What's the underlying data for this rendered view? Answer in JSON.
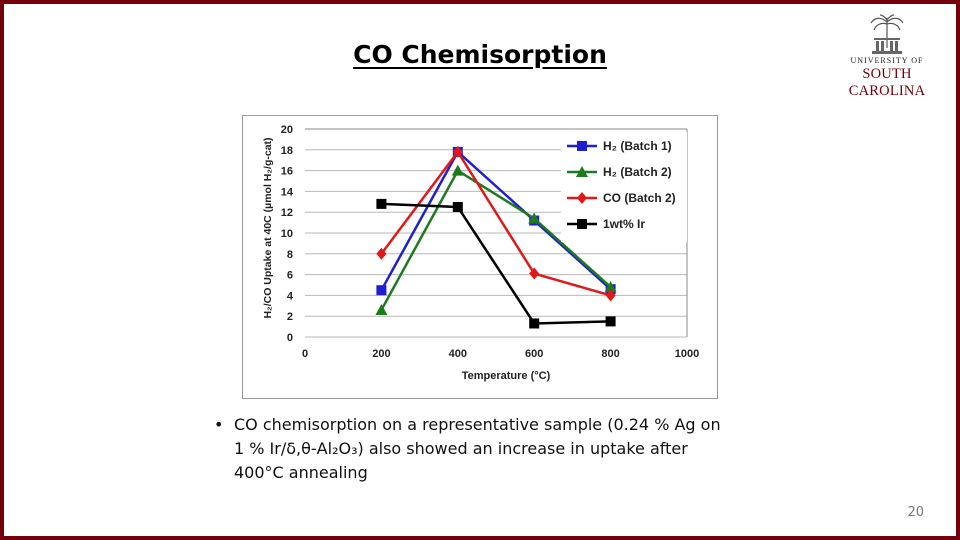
{
  "slide": {
    "title": "CO Chemisorption",
    "bullet_marker": "•",
    "bullet_text": "CO chemisorption on a representative sample (0.24 % Ag on 1 % Ir/δ,θ-Al₂O₃) also showed an increase in uptake after 400°C annealing",
    "page_number": "20",
    "border_color": "#73000a"
  },
  "logo": {
    "line1": "UNIVERSITY OF",
    "line2": "SOUTH CAROLINA",
    "icon": "palmetto-tree-icon"
  },
  "chart_data": {
    "type": "line",
    "title": "",
    "xlabel": "Temperature (°C)",
    "ylabel": "H₂/CO Uptake at 40C (µmol H₂/g-cat)",
    "xlim": [
      0,
      1000
    ],
    "ylim": [
      0,
      20
    ],
    "xticks": [
      0,
      200,
      400,
      600,
      800,
      1000
    ],
    "yticks": [
      0,
      2,
      4,
      6,
      8,
      10,
      12,
      14,
      16,
      18,
      20
    ],
    "grid": "horizontal",
    "legend_position": "top-right",
    "series": [
      {
        "name": "H₂ (Batch 1)",
        "color": "#1f1fd0",
        "marker": "square",
        "x": [
          200,
          400,
          600,
          800
        ],
        "y": [
          4.5,
          17.8,
          11.2,
          4.6
        ]
      },
      {
        "name": "H₂ (Batch 2)",
        "color": "#1e7a1e",
        "marker": "triangle",
        "x": [
          200,
          400,
          600,
          800
        ],
        "y": [
          2.6,
          16.0,
          11.4,
          4.8
        ]
      },
      {
        "name": "CO (Batch 2)",
        "color": "#e01818",
        "marker": "diamond",
        "x": [
          200,
          400,
          600,
          800
        ],
        "y": [
          8.0,
          17.8,
          6.1,
          4.0
        ]
      },
      {
        "name": "1wt% Ir",
        "color": "#000000",
        "marker": "square",
        "x": [
          200,
          400,
          600,
          800
        ],
        "y": [
          12.8,
          12.5,
          1.3,
          1.5
        ]
      }
    ]
  }
}
